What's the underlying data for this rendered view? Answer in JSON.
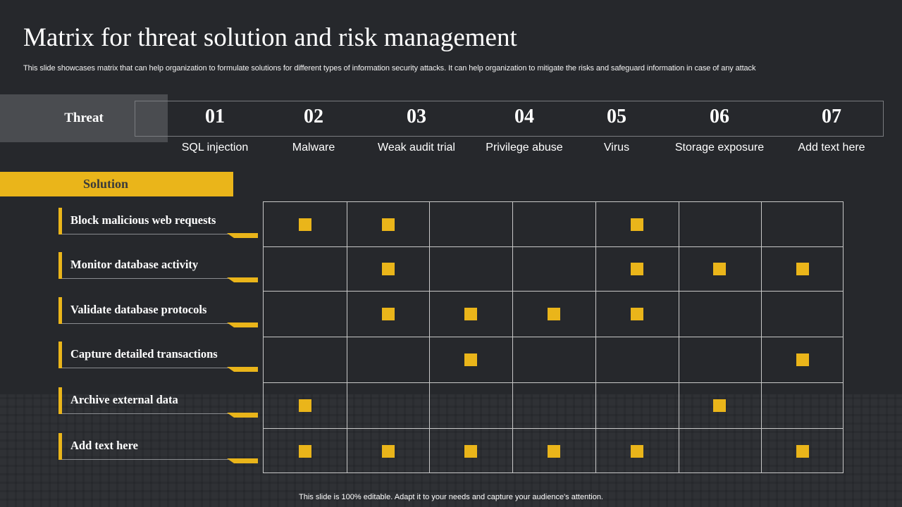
{
  "title": "Matrix for threat solution and risk management",
  "subtitle": "This slide showcases matrix that can help organization to formulate solutions for different types of information security attacks. It can help organization to mitigate the risks and safeguard information in case of any attack",
  "threat_label": "Threat",
  "threats": [
    {
      "num": "01",
      "name": "SQL injection"
    },
    {
      "num": "02",
      "name": "Malware"
    },
    {
      "num": "03",
      "name": "Weak audit trial"
    },
    {
      "num": "04",
      "name": "Privilege abuse"
    },
    {
      "num": "05",
      "name": "Virus"
    },
    {
      "num": "06",
      "name": "Storage exposure"
    },
    {
      "num": "07",
      "name": "Add text here"
    }
  ],
  "solution_label": "Solution",
  "solutions": [
    {
      "label": "Block malicious web requests",
      "marks": [
        1,
        1,
        0,
        0,
        1,
        0,
        0
      ]
    },
    {
      "label": "Monitor database activity",
      "marks": [
        0,
        1,
        0,
        0,
        1,
        1,
        1
      ]
    },
    {
      "label": "Validate database protocols",
      "marks": [
        0,
        1,
        1,
        1,
        1,
        0,
        0
      ]
    },
    {
      "label": "Capture detailed transactions",
      "marks": [
        0,
        0,
        1,
        0,
        0,
        0,
        1
      ]
    },
    {
      "label": "Archive external data",
      "marks": [
        1,
        0,
        0,
        0,
        0,
        1,
        0
      ]
    },
    {
      "label": "Add text here",
      "marks": [
        1,
        1,
        1,
        1,
        1,
        0,
        1
      ]
    }
  ],
  "footer": "This slide is 100% editable. Adapt it to your needs and capture your audience's attention.",
  "colors": {
    "accent": "#eab51a",
    "background": "#26282c",
    "threat_box": "#4a4c50"
  }
}
